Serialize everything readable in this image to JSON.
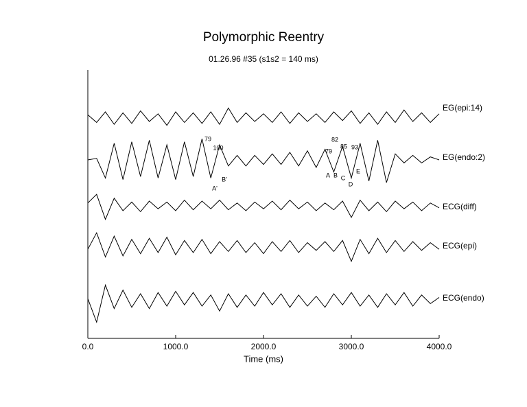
{
  "chart_data": {
    "type": "line",
    "title": "Polymorphic Reentry",
    "subtitle": "01.26.96 #35 (s1s2 = 140 ms)",
    "x_label": "Time (ms)",
    "xlim": [
      0,
      4000
    ],
    "xticks": [
      {
        "value": 0,
        "label": "0.0"
      },
      {
        "value": 1000,
        "label": "1000.0"
      },
      {
        "value": 2000,
        "label": "2000.0"
      },
      {
        "value": 3000,
        "label": "3000.0"
      },
      {
        "value": 4000,
        "label": "4000.0"
      }
    ],
    "x": [
      0,
      100,
      200,
      300,
      400,
      500,
      600,
      700,
      800,
      900,
      1000,
      1100,
      1200,
      1300,
      1400,
      1500,
      1600,
      1700,
      1800,
      1900,
      2000,
      2100,
      2200,
      2300,
      2400,
      2500,
      2600,
      2700,
      2800,
      2900,
      3000,
      3100,
      3200,
      3300,
      3400,
      3500,
      3600,
      3700,
      3800,
      3900,
      4000
    ],
    "series": [
      {
        "name": "EG(epi:14)",
        "color": "#000000",
        "values": [
          0.2,
          -0.6,
          0.5,
          -0.8,
          0.4,
          -0.7,
          0.6,
          -0.5,
          0.3,
          -0.9,
          0.5,
          -0.6,
          0.4,
          -0.7,
          0.5,
          -0.8,
          0.9,
          -0.6,
          0.4,
          -0.5,
          0.3,
          -0.6,
          0.5,
          -0.7,
          0.4,
          -0.5,
          0.3,
          -0.6,
          0.5,
          -0.4,
          0.6,
          -0.7,
          0.4,
          -0.8,
          0.5,
          -0.6,
          0.7,
          -0.5,
          0.4,
          -0.6,
          0.3
        ]
      },
      {
        "name": "EG(endo:2)",
        "color": "#000000",
        "values": [
          0,
          0.1,
          -1.2,
          1.1,
          -1.3,
          1.2,
          -1.1,
          1.3,
          -1.2,
          1.0,
          -1.3,
          1.2,
          -1.1,
          1.4,
          -1.2,
          1.0,
          -0.4,
          0.3,
          -0.4,
          0.3,
          -0.3,
          0.4,
          -0.3,
          0.5,
          -0.4,
          0.6,
          -0.5,
          0.7,
          -0.8,
          0.9,
          -1.2,
          1.1,
          -1.4,
          1.3,
          -1.5,
          0.4,
          -0.2,
          0.3,
          -0.2,
          0.2,
          0
        ]
      },
      {
        "name": "ECG(diff)",
        "color": "#000000",
        "values": [
          0.3,
          1.2,
          -1.4,
          0.8,
          -0.5,
          0.4,
          -0.6,
          0.5,
          -0.3,
          0.4,
          -0.5,
          0.6,
          -0.4,
          0.5,
          -0.3,
          0.6,
          -0.4,
          0.3,
          -0.5,
          0.4,
          -0.3,
          0.5,
          -0.4,
          0.6,
          -0.3,
          0.4,
          -0.5,
          0.3,
          -0.4,
          0.5,
          -1.2,
          0.6,
          -0.5,
          0.4,
          -0.6,
          0.5,
          -0.3,
          0.4,
          -0.5,
          0.3,
          -0.2
        ]
      },
      {
        "name": "ECG(epi)",
        "color": "#000000",
        "values": [
          -0.2,
          1.3,
          -0.9,
          1.0,
          -0.8,
          0.7,
          -0.6,
          0.8,
          -0.5,
          0.9,
          -0.7,
          0.6,
          -0.5,
          0.7,
          -0.6,
          0.5,
          -0.4,
          0.6,
          -0.5,
          0.4,
          -0.6,
          0.5,
          -0.4,
          0.6,
          -0.5,
          0.4,
          -0.3,
          0.5,
          -0.4,
          0.6,
          -1.3,
          0.7,
          -0.6,
          0.8,
          -0.5,
          0.6,
          -0.4,
          0.5,
          -0.3,
          0.4,
          -0.2
        ]
      },
      {
        "name": "ECG(endo)",
        "color": "#000000",
        "values": [
          0.1,
          -1.8,
          1.2,
          -0.7,
          0.8,
          -0.6,
          0.5,
          -0.7,
          0.6,
          -0.5,
          0.7,
          -0.4,
          0.6,
          -0.5,
          0.4,
          -0.9,
          0.5,
          -0.6,
          0.4,
          -0.5,
          0.6,
          -0.4,
          0.5,
          -0.6,
          0.4,
          -0.5,
          0.3,
          -0.6,
          0.5,
          -0.4,
          0.6,
          -0.5,
          0.4,
          -0.6,
          0.5,
          -0.4,
          0.6,
          -0.5,
          0.4,
          -0.3,
          0.2
        ]
      }
    ],
    "annotations": [
      "79",
      "100",
      "A'",
      "B'",
      "82",
      "79",
      "85",
      "93",
      "A",
      "B",
      "C",
      "D",
      "E"
    ]
  }
}
